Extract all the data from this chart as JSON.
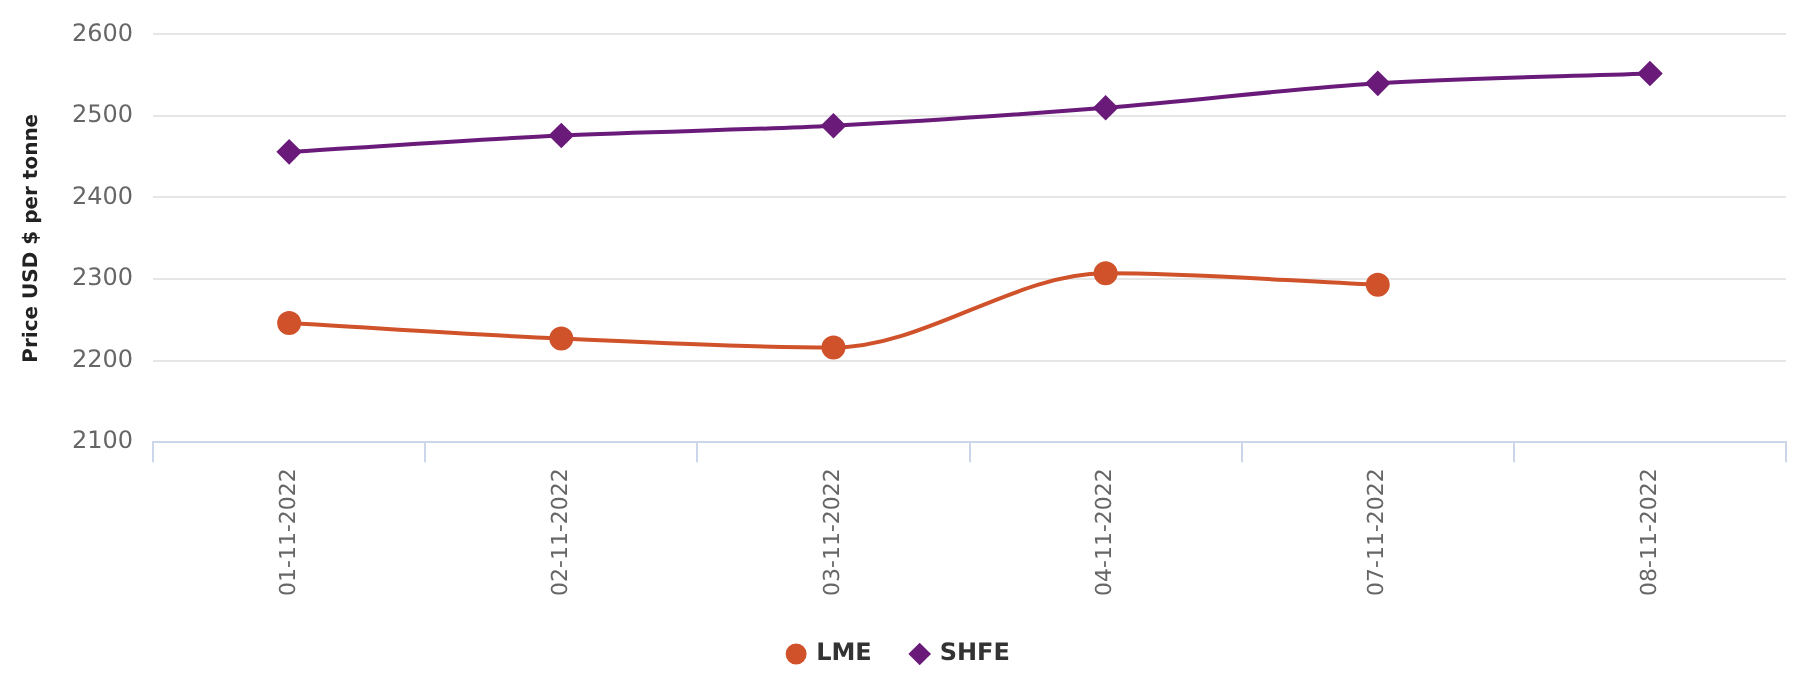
{
  "chart_data": {
    "type": "line",
    "ylabel": "Price USD $ per tonne",
    "categories": [
      "01-11-2022",
      "02-11-2022",
      "03-11-2022",
      "04-11-2022",
      "07-11-2022",
      "08-11-2022"
    ],
    "series": [
      {
        "name": "LME",
        "color": "#d0522a",
        "marker": "circle",
        "values": [
          2246,
          2227,
          2216,
          2307,
          2293,
          null
        ]
      },
      {
        "name": "SHFE",
        "color": "#6a1b7a",
        "marker": "diamond",
        "values": [
          2456,
          2476,
          2488,
          2510,
          2540,
          2552
        ]
      }
    ],
    "ylim": [
      2100,
      2600
    ],
    "yticks": [
      2100,
      2200,
      2300,
      2400,
      2500,
      2600
    ],
    "grid": "y",
    "legend": "bottom"
  }
}
